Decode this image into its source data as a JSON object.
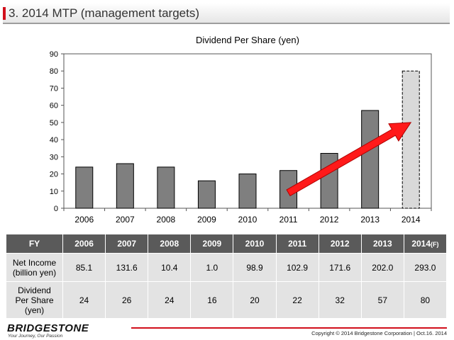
{
  "slide": {
    "title": "3. 2014 MTP (management targets)"
  },
  "chart_data": {
    "type": "bar",
    "title": "Dividend Per Share  (yen)",
    "categories": [
      "2006",
      "2007",
      "2008",
      "2009",
      "2010",
      "2011",
      "2012",
      "2013",
      "2014"
    ],
    "values": [
      24,
      26,
      24,
      16,
      20,
      22,
      32,
      57,
      80
    ],
    "forecast_index": 8,
    "ylim": [
      0,
      90
    ],
    "yticks": [
      0,
      10,
      20,
      30,
      40,
      50,
      60,
      70,
      80,
      90
    ],
    "grid": false,
    "bar_color": "#7f7f7f",
    "forecast_color": "#d9d9d9",
    "arrow_color": "#ff1a1a",
    "arrow": {
      "from": {
        "x": "2011",
        "y": 9
      },
      "to": {
        "x": "2014",
        "y": 50
      }
    }
  },
  "table": {
    "header": [
      "FY",
      "2006",
      "2007",
      "2008",
      "2009",
      "2010",
      "2011",
      "2012",
      "2013",
      "2014"
    ],
    "header_suffix": "(F)",
    "rows": [
      {
        "label_lines": [
          "Net Income",
          "(billion yen)"
        ],
        "values": [
          "85.1",
          "131.6",
          "10.4",
          "1.0",
          "98.9",
          "102.9",
          "171.6",
          "202.0",
          "293.0"
        ]
      },
      {
        "label_lines": [
          "Dividend",
          "Per Share",
          "(yen)"
        ],
        "values": [
          "24",
          "26",
          "24",
          "16",
          "20",
          "22",
          "32",
          "57",
          "80"
        ]
      }
    ]
  },
  "footer": {
    "brand": "BRIDGESTONE",
    "tagline": "Your Journey, Our Passion",
    "copyright": "Copyright © 2014 Bridgestone Corporation  |  Oct.16. 2014"
  },
  "colors": {
    "accent": "#d10f1b",
    "header_bg": "#5a5a5a",
    "cell_bg": "#e3e3e3"
  }
}
